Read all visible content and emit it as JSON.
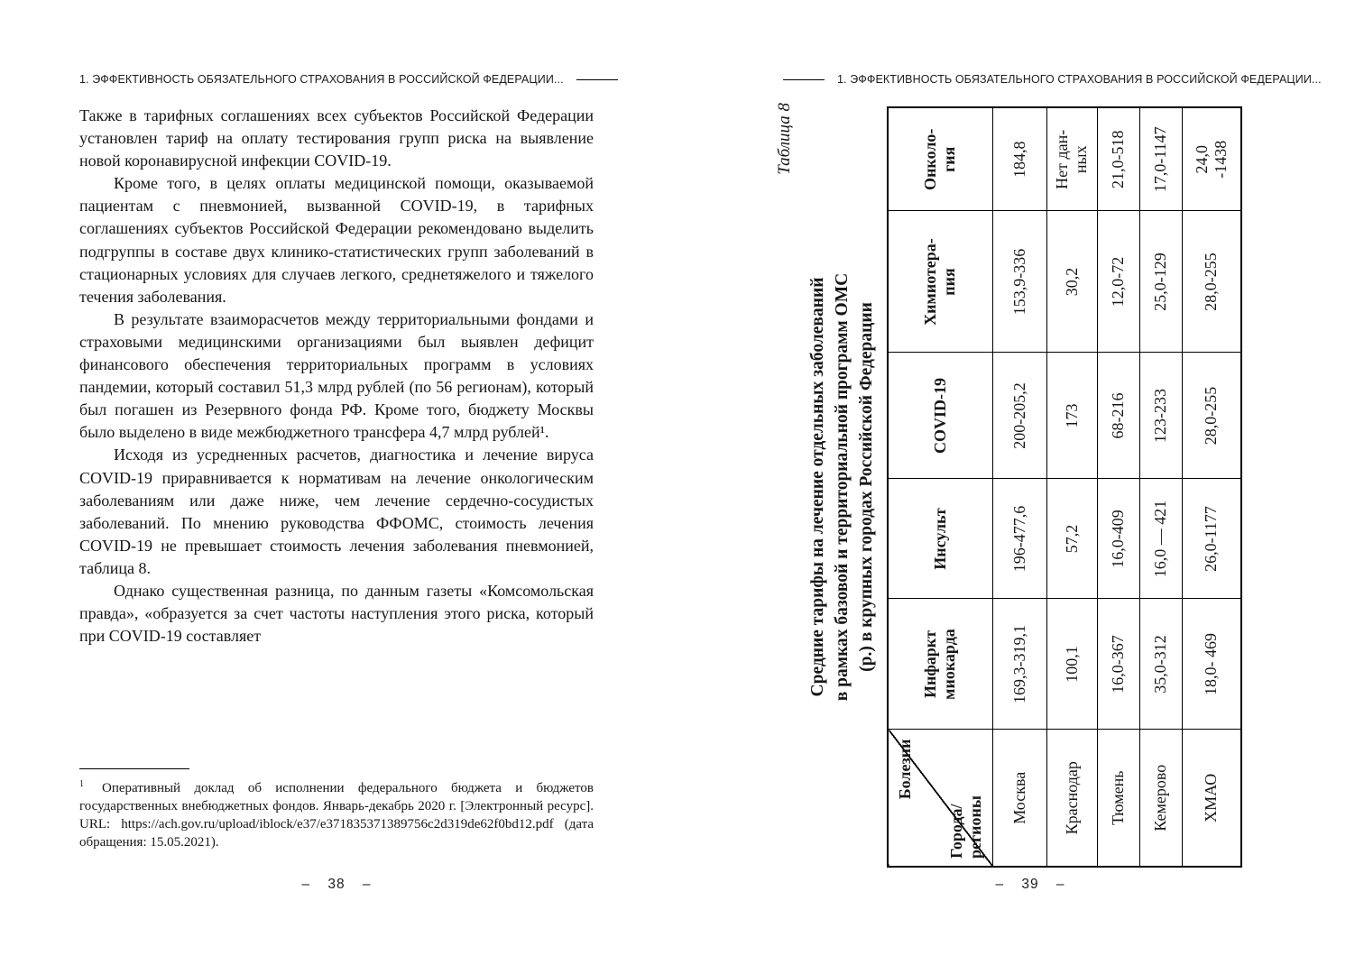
{
  "left_page": {
    "running_head": "1. ЭФФЕКТИВНОСТЬ ОБЯЗАТЕЛЬНОГО СТРАХОВАНИЯ В РОССИЙСКОЙ ФЕДЕРАЦИИ...",
    "paragraphs": [
      "Также в тарифных соглашениях всех субъектов Российской Федерации установлен тариф на оплату тестирования групп риска на выявление новой коронавирусной инфекции COVID-19.",
      "Кроме того, в целях оплаты медицинской помощи, оказываемой пациентам с пневмонией, вызванной COVID-19, в тарифных соглашениях субъектов Российской Федерации рекомендовано выделить подгруппы в составе двух клинико-статистических групп заболеваний в стационарных условиях для случаев легкого, среднетяжелого и тяжелого течения заболевания.",
      "В результате взаиморасчетов между территориальными фондами и страховыми медицинскими организациями был выявлен дефицит финансового обеспечения территориальных программ в условиях пандемии, который составил 51,3 млрд рублей (по 56 регионам), который был погашен из Резервного фонда РФ. Кроме того, бюджету Москвы было выделено в виде межбюджетного трансфера 4,7 млрд рублей¹.",
      "Исходя из усредненных расчетов, диагностика и лечение вируса COVID-19 приравнивается к нормативам на лечение онкологическим заболеваниям или даже ниже, чем лечение сердечно-сосудистых заболеваний. По мнению руководства ФФОМС, стоимость лечения COVID-19 не превышает стоимость лечения заболевания пневмонией, таблица 8.",
      "Однако существенная разница, по данным газеты «Комсомольская правда», «образуется за счет частоты наступления этого риска, который при COVID-19 составляет"
    ],
    "footnote": {
      "marker": "1",
      "text": "Оперативный доклад об исполнении федерального бюджета и бюджетов государственных внебюджетных фондов. Январь-декабрь 2020 г. [Электронный ресурс]. URL: https://ach.gov.ru/upload/iblock/e37/e371835371389756c2d319de62f0bd12.pdf (дата обращения: 15.05.2021)."
    },
    "page_number": "– 38 –"
  },
  "right_page": {
    "running_head": "1. ЭФФЕКТИВНОСТЬ ОБЯЗАТЕЛЬНОГО СТРАХОВАНИЯ В РОССИЙСКОЙ ФЕДЕРАЦИИ...",
    "table_caption": "Таблица 8",
    "table_title": "Средние тарифы на лечение отдельных заболеваний\nв рамках базовой и территориальной программ ОМС\n(р.) в крупных городах Российской Федерации",
    "table": {
      "corner_top": "Болезни",
      "corner_bottom": "Города/\nрегионы",
      "columns": [
        "Инфаркт\nмиокарда",
        "Инсульт",
        "COVID-19",
        "Химиотера-\nпия",
        "Онколо-\nгия"
      ],
      "rows": [
        {
          "city": "Москва",
          "values": [
            "169,3-319,1",
            "196-477,6",
            "200-205,2",
            "153,9-336",
            "184,8"
          ]
        },
        {
          "city": "Краснодар",
          "values": [
            "100,1",
            "57,2",
            "173",
            "30,2",
            "Нет дан-\nных"
          ]
        },
        {
          "city": "Тюмень",
          "values": [
            "16,0-367",
            "16,0-409",
            "68-216",
            "12,0-72",
            "21,0-518"
          ]
        },
        {
          "city": "Кемерово",
          "values": [
            "35,0-312",
            "16,0 — 421",
            "123-233",
            "25,0-129",
            "17,0-1147"
          ]
        },
        {
          "city": "ХМАО",
          "values": [
            "18,0- 469",
            "26,0-1177",
            "28,0-255",
            "28,0-255",
            "24,0\n-1438"
          ]
        }
      ]
    },
    "page_number": "– 39 –"
  }
}
